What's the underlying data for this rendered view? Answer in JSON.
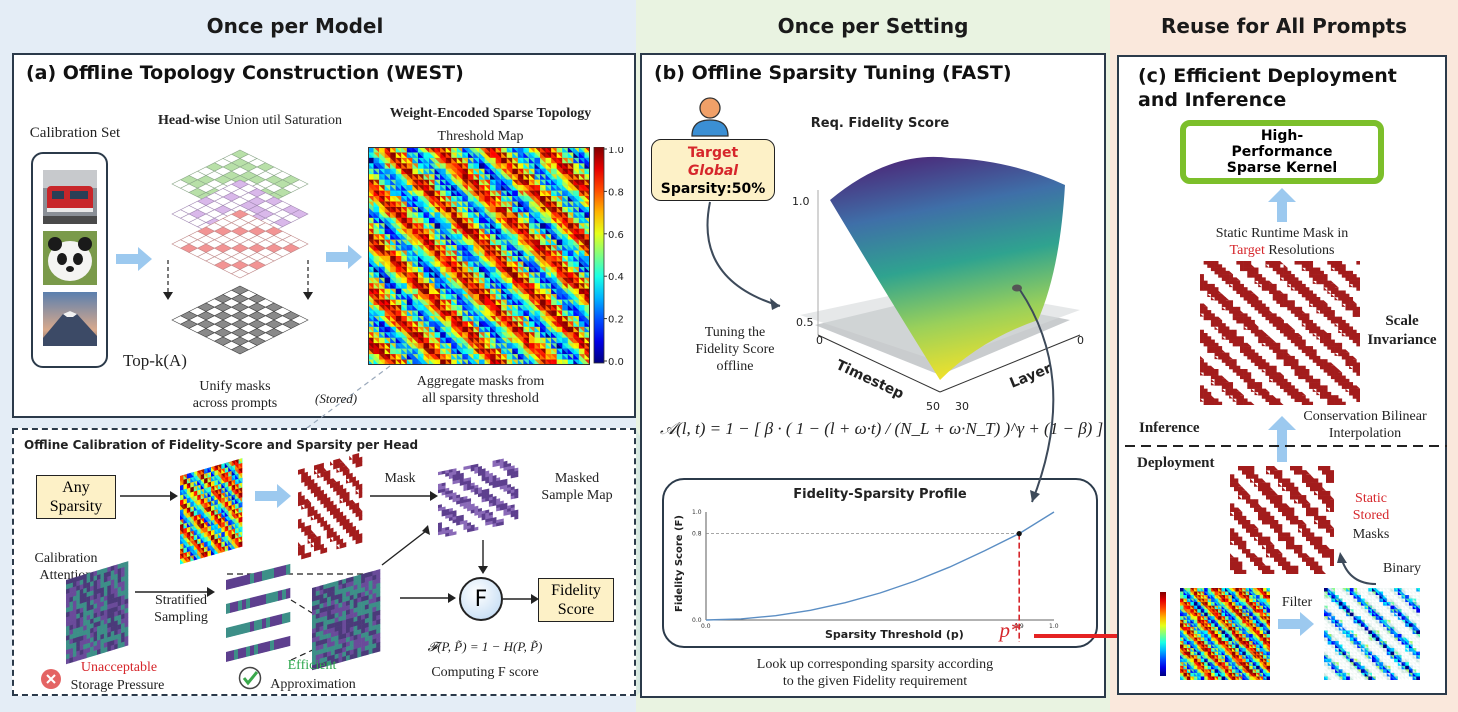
{
  "sections": {
    "model": "Once per Model",
    "setting": "Once per Setting",
    "prompts": "Reuse for All Prompts"
  },
  "panel_a": {
    "title": "(a) Offline Topology Construction (WEST)",
    "calibration_set": "Calibration Set",
    "headwise_bold": "Head-wise",
    "headwise_rest": " Union util Saturation",
    "topk": "Top-k(A)",
    "unify": "Unify masks\nacross prompts",
    "west_title": "Weight-Encoded Sparse Topology",
    "threshold_map": "Threshold Map",
    "aggregate": "Aggregate masks from\nall sparsity threshold",
    "colorbar_ticks": [
      "1.0",
      "0.8",
      "0.6",
      "0.4",
      "0.2",
      "0.0"
    ]
  },
  "stored": "(Stored)",
  "calib": {
    "title": "Offline Calibration of Fidelity-Score and Sparsity per Head",
    "any_sparsity": "Any\nSparsity",
    "mask": "Mask",
    "masked_sample_map": "Masked\nSample Map",
    "calib_attention": "Calibration\nAttention",
    "stratified": "Stratified\nSampling",
    "f_letter": "F",
    "fidelity_score": "Fidelity\nScore",
    "formula": "𝓕(P, P̃) = 1 − H(P, P̃)",
    "computing": "Computing F score",
    "unacceptable": "Unacceptable",
    "storage": "Storage Pressure",
    "efficient": "Efficient",
    "approximation": "Approximation"
  },
  "panel_b": {
    "title": "(b) Offline Sparsity Tuning (FAST)",
    "target_line1": "Target",
    "target_line2": "Global",
    "target_line3": "Sparsity:50%",
    "surface_title": "Req. Fidelity Score",
    "z_ticks": [
      "1.0",
      "0.5"
    ],
    "timestep_label": "Timestep",
    "layer_label": "Layer",
    "t_ticks": [
      "0",
      "50"
    ],
    "l_ticks": [
      "0",
      "30"
    ],
    "tuning": "Tuning the\nFidelity Score\noffline",
    "formula": "𝒜(l, t) = 1 − [ β · ( 1 − (l + ω·t) / (N_L + ω·N_T) )^γ + (1 − β) ]",
    "profile_title": "Fidelity-Sparsity Profile",
    "profile_ylabel": "Fidelity Score (F)",
    "profile_xlabel": "Sparsity Threshold (p)",
    "pstar": "p*",
    "lookup": "Look up corresponding sparsity according\nto the given Fidelity requirement"
  },
  "profile_chart": {
    "type": "line",
    "x": [
      0.0,
      0.1,
      0.2,
      0.3,
      0.4,
      0.5,
      0.6,
      0.7,
      0.8,
      0.9,
      1.0
    ],
    "y": [
      0.0,
      0.01,
      0.04,
      0.09,
      0.16,
      0.25,
      0.36,
      0.49,
      0.64,
      0.8,
      1.0
    ],
    "xlim": [
      0.0,
      1.0
    ],
    "ylim": [
      0.0,
      1.0
    ],
    "x_ticks": [
      "0.0",
      "0.9",
      "1.0"
    ],
    "y_ticks": [
      "1.0",
      "0.8",
      "0.0"
    ],
    "highlight": {
      "x": 0.9,
      "y": 0.8
    }
  },
  "panel_c": {
    "title_line1": "(c) Efficient Deployment",
    "title_line2": "and Inference",
    "kernel": "High-\nPerformance\nSparse Kernel",
    "static_runtime_1": "Static Runtime Mask in",
    "static_runtime_target": "Target",
    "static_runtime_2": " Resolutions",
    "scale_invariance": "Scale\nInvariance",
    "conservation": "Conservation Bilinear\nInterpolation",
    "inference": "Inference",
    "deployment": "Deployment",
    "static_stored_red": "Static\nStored",
    "masks": "Masks",
    "binary": "Binary",
    "filter": "Filter"
  },
  "colors": {
    "band_model": "#e4edf6",
    "band_setting": "#e9f3e1",
    "band_prompts": "#fae8dc",
    "mask_red": "#a31c1c",
    "arrow_blue": "#9cc9ef",
    "kernel_green": "#7cbf2a"
  }
}
